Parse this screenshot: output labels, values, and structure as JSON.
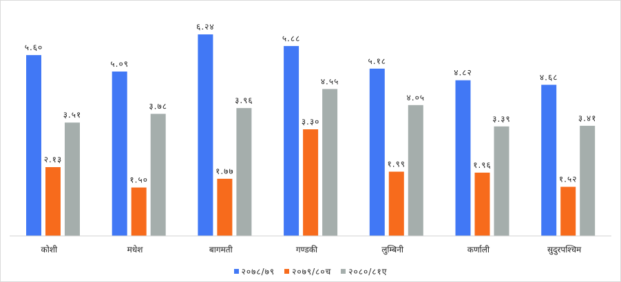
{
  "chart_data": {
    "type": "bar",
    "title": "",
    "xlabel": "",
    "ylabel": "",
    "ylim": [
      0,
      6.5
    ],
    "grid": false,
    "legend_position": "bottom",
    "categories": [
      "कोशी",
      "मधेश",
      "बागमती",
      "गण्डकी",
      "लुम्बिनी",
      "कर्णाली",
      "सुदुरपश्चिम"
    ],
    "series": [
      {
        "name": "२०७८/७९",
        "color": "#4178f5",
        "values": [
          5.6,
          5.09,
          6.24,
          5.88,
          5.18,
          4.82,
          4.68
        ],
        "labels": [
          "५.६०",
          "५.०९",
          "६.२४",
          "५.८८",
          "५.१८",
          "४.८२",
          "४.६८"
        ]
      },
      {
        "name": "२०७९/८०च",
        "color": "#f76b1c",
        "values": [
          2.13,
          1.5,
          1.77,
          3.3,
          1.99,
          1.96,
          1.52
        ],
        "labels": [
          "२.१३",
          "१.५०",
          "१.७७",
          "३.३०",
          "१.९९",
          "१.९६",
          "१.५२"
        ]
      },
      {
        "name": "२०८०/८१ए",
        "color": "#a5aeac",
        "values": [
          3.51,
          3.78,
          3.96,
          4.55,
          4.05,
          3.39,
          3.41
        ],
        "labels": [
          "३.५१",
          "३.७८",
          "३.९६",
          "४.५५",
          "४.०५",
          "३.३९",
          "३.४१"
        ]
      }
    ]
  }
}
